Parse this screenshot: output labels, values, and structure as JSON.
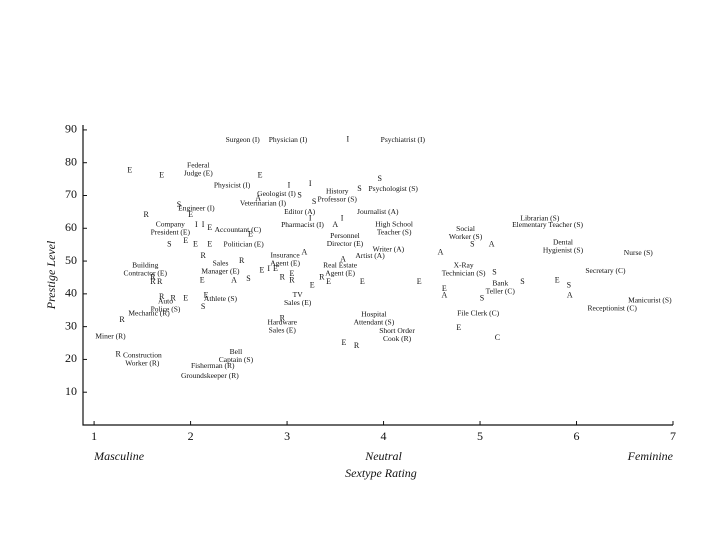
{
  "chart_data": {
    "type": "scatter",
    "xlabel": "Sextype Rating",
    "ylabel": "Prestige Level",
    "x_annotations": [
      {
        "x": 1,
        "text": "Masculine"
      },
      {
        "x": 4,
        "text": "Neutral"
      },
      {
        "x": 7,
        "text": "Feminine"
      }
    ],
    "xlim": [
      0.885,
      7
    ],
    "ylim": [
      0,
      91.5
    ],
    "xticks": [
      1,
      2,
      3,
      4,
      5,
      6,
      7
    ],
    "yticks": [
      10,
      20,
      30,
      40,
      50,
      60,
      70,
      80,
      90
    ],
    "points": [
      {
        "x": 2.54,
        "y": 87,
        "label": "Surgeon (I)"
      },
      {
        "x": 3.01,
        "y": 87,
        "label": "Physician (I)"
      },
      {
        "x": 4.2,
        "y": 87,
        "label": "Psychiatrist (I)"
      },
      {
        "x": 2.08,
        "y": 78,
        "label": "Federal\nJudge (E)"
      },
      {
        "x": 2.43,
        "y": 73,
        "label": "Physicist (I)"
      },
      {
        "x": 2.89,
        "y": 70.5,
        "label": "Geologist (I)"
      },
      {
        "x": 3.52,
        "y": 70,
        "label": "History\nProfessor (S)"
      },
      {
        "x": 4.1,
        "y": 72,
        "label": "Psychologist (S)"
      },
      {
        "x": 2.75,
        "y": 67.5,
        "label": "Veterinarian (I)"
      },
      {
        "x": 2.06,
        "y": 66,
        "label": "Engineer (I)"
      },
      {
        "x": 3.13,
        "y": 65,
        "label": "Editor (A)"
      },
      {
        "x": 3.94,
        "y": 65,
        "label": "Journalist (A)"
      },
      {
        "x": 1.79,
        "y": 60,
        "label": "Company\nPresident (E)"
      },
      {
        "x": 2.49,
        "y": 59.5,
        "label": "Accountant (C)"
      },
      {
        "x": 3.16,
        "y": 61,
        "label": "Pharmacist (I)"
      },
      {
        "x": 4.11,
        "y": 60,
        "label": "High School\nTeacher (S)"
      },
      {
        "x": 4.85,
        "y": 58.5,
        "label": "Social\nWorker (S)"
      },
      {
        "x": 5.62,
        "y": 63,
        "label": "Librarian (S)"
      },
      {
        "x": 5.7,
        "y": 61,
        "label": "Elementary Teacher (S)"
      },
      {
        "x": 2.55,
        "y": 55,
        "label": "Politician (E)"
      },
      {
        "x": 3.6,
        "y": 56.5,
        "label": "Personnel\nDirector (E)"
      },
      {
        "x": 4.05,
        "y": 53.5,
        "label": "Writer (A)"
      },
      {
        "x": 5.86,
        "y": 54.5,
        "label": "Dental\nHygienist (S)"
      },
      {
        "x": 6.64,
        "y": 52.5,
        "label": "Nurse (S)"
      },
      {
        "x": 2.98,
        "y": 50.5,
        "label": "Insurance\nAgent (E)"
      },
      {
        "x": 3.86,
        "y": 51.5,
        "label": "Artist (A)"
      },
      {
        "x": 1.53,
        "y": 47.5,
        "label": "Building\nContractor (E)"
      },
      {
        "x": 2.31,
        "y": 48,
        "label": "Sales\nManager (E)"
      },
      {
        "x": 3.55,
        "y": 47.5,
        "label": "Real Estate\nAgent (E)"
      },
      {
        "x": 4.83,
        "y": 47.5,
        "label": "X-Ray\nTechnician (S)"
      },
      {
        "x": 6.3,
        "y": 47,
        "label": "Secretary (C)"
      },
      {
        "x": 5.21,
        "y": 42,
        "label": "Bank\nTeller (C)"
      },
      {
        "x": 2.31,
        "y": 38.5,
        "label": "Athlete (S)"
      },
      {
        "x": 3.11,
        "y": 38.5,
        "label": "TV\nSales (E)"
      },
      {
        "x": 6.76,
        "y": 38,
        "label": "Manicurist (S)"
      },
      {
        "x": 1.74,
        "y": 36.5,
        "label": "Auto\nPolice (S)"
      },
      {
        "x": 6.37,
        "y": 35.5,
        "label": "Receptionist (C)"
      },
      {
        "x": 1.57,
        "y": 34,
        "label": "Mechanic (R)"
      },
      {
        "x": 4.98,
        "y": 34,
        "label": "File Clerk (C)"
      },
      {
        "x": 3.9,
        "y": 32.5,
        "label": "Hospital\nAttendant (S)"
      },
      {
        "x": 2.95,
        "y": 30,
        "label": "Hardware\nSales (E)"
      },
      {
        "x": 4.14,
        "y": 27.5,
        "label": "Short Order\nCook (R)"
      },
      {
        "x": 1.17,
        "y": 27,
        "label": "Miner (R)"
      },
      {
        "x": 2.47,
        "y": 21,
        "label": "Bell\nCaptain (S)"
      },
      {
        "x": 1.5,
        "y": 20,
        "label": "Construction\nWorker (R)"
      },
      {
        "x": 2.23,
        "y": 18,
        "label": "Fisherman (R)"
      },
      {
        "x": 2.2,
        "y": 15,
        "label": "Groundskeeper (R)"
      },
      {
        "x": 3.63,
        "y": 87,
        "marker": "I"
      },
      {
        "x": 1.37,
        "y": 77.5,
        "marker": "E"
      },
      {
        "x": 1.7,
        "y": 76,
        "marker": "E"
      },
      {
        "x": 2.72,
        "y": 76,
        "marker": "E"
      },
      {
        "x": 3.02,
        "y": 73,
        "marker": "I"
      },
      {
        "x": 3.24,
        "y": 73.5,
        "marker": "I"
      },
      {
        "x": 3.75,
        "y": 72,
        "marker": "S"
      },
      {
        "x": 3.96,
        "y": 75,
        "marker": "S"
      },
      {
        "x": 3.13,
        "y": 70,
        "marker": "S"
      },
      {
        "x": 3.28,
        "y": 68,
        "marker": "S"
      },
      {
        "x": 2.7,
        "y": 69,
        "marker": "A"
      },
      {
        "x": 1.54,
        "y": 64,
        "marker": "R"
      },
      {
        "x": 2.0,
        "y": 64,
        "marker": "E"
      },
      {
        "x": 3.24,
        "y": 63,
        "marker": "I"
      },
      {
        "x": 3.57,
        "y": 63,
        "marker": "I"
      },
      {
        "x": 3.5,
        "y": 61,
        "marker": "A"
      },
      {
        "x": 1.88,
        "y": 67,
        "marker": "S"
      },
      {
        "x": 1.78,
        "y": 55,
        "marker": "S"
      },
      {
        "x": 1.95,
        "y": 56,
        "marker": "E"
      },
      {
        "x": 2.05,
        "y": 55,
        "marker": "E"
      },
      {
        "x": 2.2,
        "y": 55,
        "marker": "E"
      },
      {
        "x": 2.06,
        "y": 61,
        "marker": "I"
      },
      {
        "x": 2.13,
        "y": 61,
        "marker": "I"
      },
      {
        "x": 2.2,
        "y": 60,
        "marker": "E"
      },
      {
        "x": 2.62,
        "y": 58,
        "marker": "E"
      },
      {
        "x": 3.18,
        "y": 52.5,
        "marker": "A"
      },
      {
        "x": 3.58,
        "y": 50.5,
        "marker": "A"
      },
      {
        "x": 4.92,
        "y": 55,
        "marker": "S"
      },
      {
        "x": 5.12,
        "y": 55,
        "marker": "A"
      },
      {
        "x": 4.59,
        "y": 52.5,
        "marker": "A"
      },
      {
        "x": 2.13,
        "y": 51.5,
        "marker": "R"
      },
      {
        "x": 2.53,
        "y": 50,
        "marker": "R"
      },
      {
        "x": 2.74,
        "y": 47,
        "marker": "E"
      },
      {
        "x": 2.81,
        "y": 47.5,
        "marker": "I"
      },
      {
        "x": 2.88,
        "y": 47.5,
        "marker": "E"
      },
      {
        "x": 3.05,
        "y": 46,
        "marker": "E"
      },
      {
        "x": 2.95,
        "y": 45,
        "marker": "R"
      },
      {
        "x": 3.05,
        "y": 44,
        "marker": "R"
      },
      {
        "x": 3.36,
        "y": 45,
        "marker": "R"
      },
      {
        "x": 3.26,
        "y": 42.5,
        "marker": "E"
      },
      {
        "x": 3.43,
        "y": 43.5,
        "marker": "E"
      },
      {
        "x": 3.78,
        "y": 43.5,
        "marker": "E"
      },
      {
        "x": 4.37,
        "y": 43.5,
        "marker": "E"
      },
      {
        "x": 4.63,
        "y": 41.5,
        "marker": "E"
      },
      {
        "x": 4.63,
        "y": 39.5,
        "marker": "A"
      },
      {
        "x": 5.15,
        "y": 46.5,
        "marker": "S"
      },
      {
        "x": 5.44,
        "y": 43.5,
        "marker": "S"
      },
      {
        "x": 5.8,
        "y": 44,
        "marker": "E"
      },
      {
        "x": 5.92,
        "y": 42.5,
        "marker": "S"
      },
      {
        "x": 5.93,
        "y": 39.5,
        "marker": "A"
      },
      {
        "x": 5.02,
        "y": 38.5,
        "marker": "S"
      },
      {
        "x": 4.78,
        "y": 29.5,
        "marker": "E"
      },
      {
        "x": 5.18,
        "y": 26.5,
        "marker": "C"
      },
      {
        "x": 1.61,
        "y": 43.5,
        "marker": "R"
      },
      {
        "x": 1.61,
        "y": 45,
        "marker": "R"
      },
      {
        "x": 1.68,
        "y": 43.5,
        "marker": "R"
      },
      {
        "x": 2.12,
        "y": 44,
        "marker": "E"
      },
      {
        "x": 2.45,
        "y": 44,
        "marker": "A"
      },
      {
        "x": 2.6,
        "y": 44.5,
        "marker": "S"
      },
      {
        "x": 1.7,
        "y": 39,
        "marker": "R"
      },
      {
        "x": 1.82,
        "y": 38.5,
        "marker": "R"
      },
      {
        "x": 1.95,
        "y": 38.5,
        "marker": "E"
      },
      {
        "x": 2.16,
        "y": 39.5,
        "marker": "E"
      },
      {
        "x": 2.13,
        "y": 36,
        "marker": "S"
      },
      {
        "x": 1.29,
        "y": 32,
        "marker": "R"
      },
      {
        "x": 1.25,
        "y": 21.5,
        "marker": "R"
      },
      {
        "x": 2.95,
        "y": 32.5,
        "marker": "R"
      },
      {
        "x": 3.59,
        "y": 25,
        "marker": "E"
      },
      {
        "x": 3.72,
        "y": 24,
        "marker": "R"
      }
    ]
  }
}
